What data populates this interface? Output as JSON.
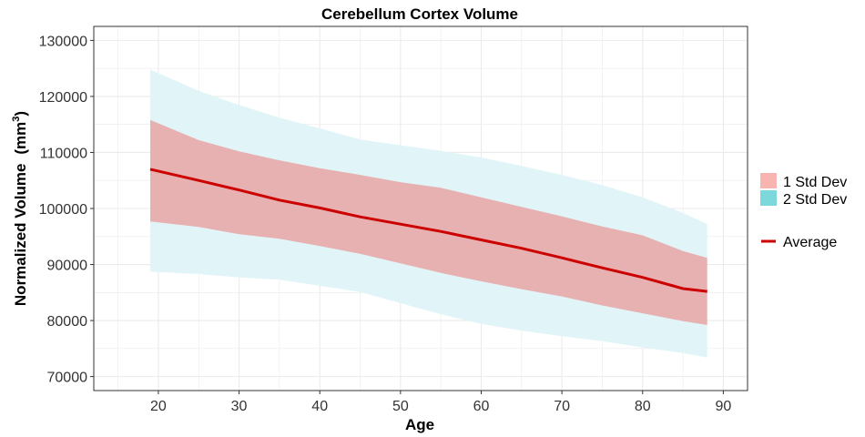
{
  "chart_data": {
    "type": "area",
    "title": "Cerebellum Cortex Volume",
    "xlabel": "Age",
    "ylabel": "Normalized Volume",
    "ylabel_unit_base": "(mm",
    "ylabel_unit_exp": "3",
    "ylabel_unit_close": ")",
    "xlim": [
      12,
      93
    ],
    "ylim": [
      67500,
      132500
    ],
    "x_ticks": [
      20,
      30,
      40,
      50,
      60,
      70,
      80,
      90
    ],
    "y_ticks": [
      70000,
      80000,
      90000,
      100000,
      110000,
      120000,
      130000
    ],
    "x_tick_labels": [
      "20",
      "30",
      "40",
      "50",
      "60",
      "70",
      "80",
      "90"
    ],
    "y_tick_labels": [
      "70000",
      "80000",
      "90000",
      "100000",
      "110000",
      "120000",
      "130000"
    ],
    "grid": true,
    "legend_position": "right",
    "x": [
      19,
      25,
      30,
      35,
      40,
      45,
      50,
      55,
      60,
      65,
      70,
      75,
      80,
      85,
      88
    ],
    "series": [
      {
        "name": "Average",
        "values": [
          107000,
          105000,
          103300,
          101500,
          100100,
          98500,
          97200,
          95900,
          94400,
          92900,
          91200,
          89400,
          87700,
          85700,
          85200
        ]
      },
      {
        "name": "1 Std Dev",
        "upper": [
          115800,
          112200,
          110200,
          108600,
          107200,
          106000,
          104700,
          103700,
          102000,
          100300,
          98600,
          96800,
          95200,
          92400,
          91200
        ],
        "lower": [
          97700,
          96700,
          95400,
          94600,
          93300,
          91900,
          90200,
          88500,
          87000,
          85600,
          84300,
          82700,
          81300,
          79900,
          79200
        ]
      },
      {
        "name": "2 Std Dev",
        "upper": [
          124800,
          121000,
          118500,
          116200,
          114300,
          112300,
          111300,
          110300,
          109100,
          107600,
          106000,
          104200,
          102000,
          99200,
          97200
        ],
        "lower": [
          88700,
          88300,
          87700,
          87300,
          86200,
          85100,
          83100,
          81100,
          79400,
          78200,
          77200,
          76300,
          75200,
          74200,
          73400
        ]
      }
    ],
    "colors": {
      "average": "#cc0000",
      "std1_fill": "#e89a9a",
      "std1_legend": "#f8b4b0",
      "std2_fill": "#e1f5f8",
      "std2_legend": "#7dd8db",
      "grid": "#ebebeb",
      "panel_border": "#333333"
    },
    "legend": {
      "std1_label": "1 Std Dev",
      "std2_label": "2 Std Dev",
      "average_label": "Average"
    }
  }
}
